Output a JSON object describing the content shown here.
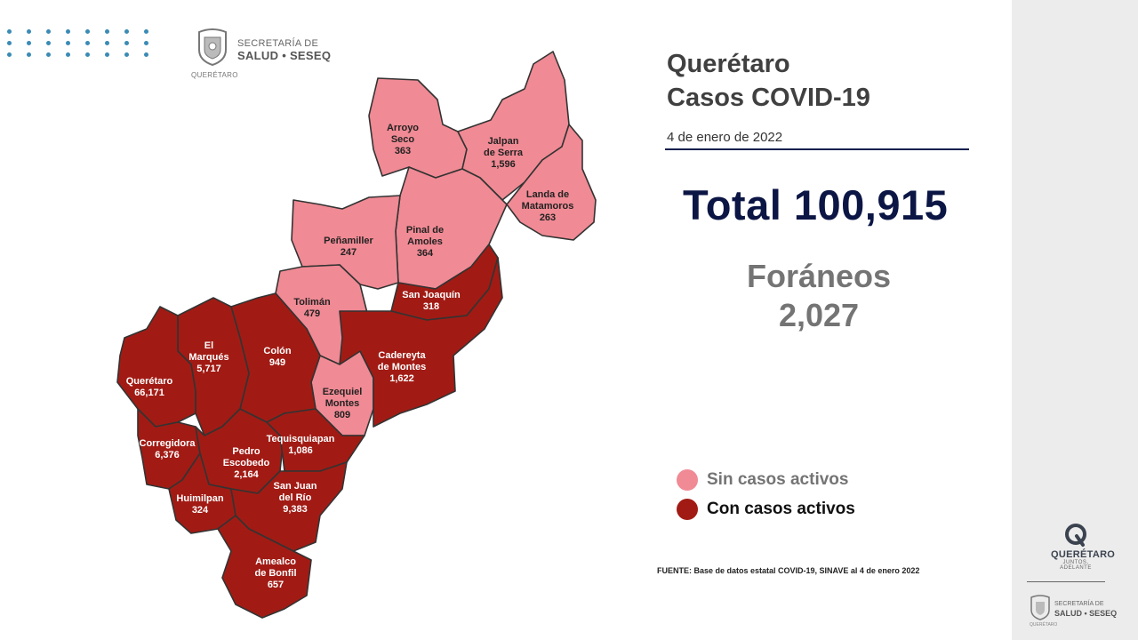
{
  "header": {
    "logo_line1": "SECRETARÍA DE",
    "logo_line2": "SALUD • SESEQ",
    "logo_sub": "QUERÉTARO"
  },
  "title": {
    "line1": "Querétaro",
    "line2": "Casos COVID-19",
    "date": "4 de enero de 2022"
  },
  "total": "Total 100,915",
  "foraneos": {
    "label": "Foráneos",
    "value": "2,027"
  },
  "legend": [
    {
      "label": "Sin casos activos",
      "color": "#f08a94",
      "text_color": "#747474"
    },
    {
      "label": "Con casos activos",
      "color": "#a11b14",
      "text_color": "#111111"
    }
  ],
  "source": "FUENTE: Base de datos estatal  COVID-19,  SINAVE  al 4 de enero 2022",
  "municipalities": [
    {
      "name": "Arroyo Seco",
      "line1": "Arroyo",
      "line2": "Seco",
      "cases": "363",
      "status": "sin"
    },
    {
      "name": "Jalpan de Serra",
      "line1": "Jalpan",
      "line2": "de Serra",
      "cases": "1,596",
      "status": "sin"
    },
    {
      "name": "Landa de Matamoros",
      "line1": "Landa de",
      "line2": "Matamoros",
      "cases": "263",
      "status": "sin"
    },
    {
      "name": "Pinal de Amoles",
      "line1": "Pinal de",
      "line2": "Amoles",
      "cases": "364",
      "status": "sin"
    },
    {
      "name": "Peñamiller",
      "line1": "Peñamiller",
      "line2": "",
      "cases": "247",
      "status": "sin"
    },
    {
      "name": "Tolimán",
      "line1": "Tolimán",
      "line2": "",
      "cases": "479",
      "status": "sin"
    },
    {
      "name": "San Joaquín",
      "line1": "San Joaquín",
      "line2": "",
      "cases": "318",
      "status": "con"
    },
    {
      "name": "Cadereyta de Montes",
      "line1": "Cadereyta",
      "line2": "de Montes",
      "cases": "1,622",
      "status": "con"
    },
    {
      "name": "Ezequiel Montes",
      "line1": "Ezequiel",
      "line2": "Montes",
      "cases": "809",
      "status": "sin"
    },
    {
      "name": "Colón",
      "line1": "Colón",
      "line2": "",
      "cases": "949",
      "status": "con"
    },
    {
      "name": "El Marqués",
      "line1": "El",
      "line2": "Marqués",
      "cases": "5,717",
      "status": "con"
    },
    {
      "name": "Querétaro",
      "line1": "Querétaro",
      "line2": "",
      "cases": "66,171",
      "status": "con"
    },
    {
      "name": "Corregidora",
      "line1": "Corregidora",
      "line2": "",
      "cases": "6,376",
      "status": "con"
    },
    {
      "name": "Pedro Escobedo",
      "line1": "Pedro",
      "line2": "Escobedo",
      "cases": "2,164",
      "status": "con"
    },
    {
      "name": "Tequisquiapan",
      "line1": "Tequisquiapan",
      "line2": "",
      "cases": "1,086",
      "status": "con"
    },
    {
      "name": "Huimilpan",
      "line1": "Huimilpan",
      "line2": "",
      "cases": "324",
      "status": "con"
    },
    {
      "name": "San Juan del Río",
      "line1": "San Juan",
      "line2": "del Río",
      "cases": "9,383",
      "status": "con"
    },
    {
      "name": "Amealco de Bonfil",
      "line1": "Amealco",
      "line2": "de Bonfil",
      "cases": "657",
      "status": "con"
    }
  ],
  "sidebar": {
    "brand": "QUERÉTARO",
    "tagline": "JUNTOS, ADELANTE",
    "logo_line1": "SECRETARÍA DE",
    "logo_line2": "SALUD • SESEQ",
    "logo_sub": "QUERÉTARO"
  }
}
